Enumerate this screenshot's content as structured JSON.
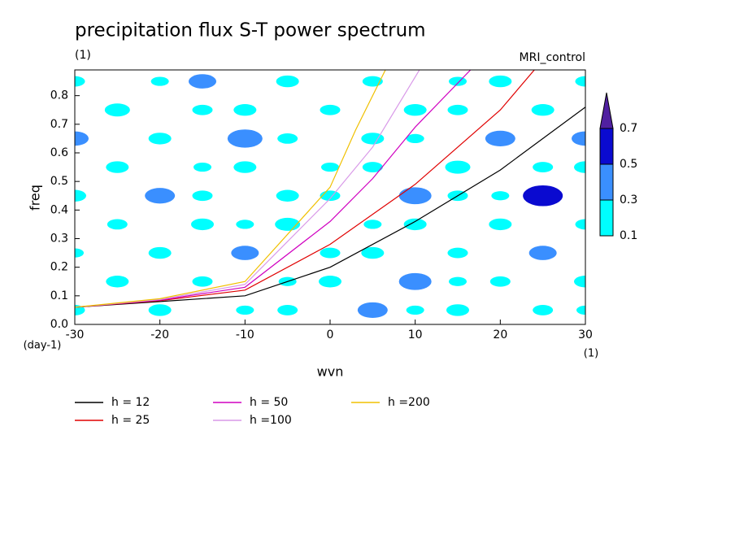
{
  "chart_data": {
    "type": "contour",
    "title": "precipitation flux S-T power spectrum",
    "subtitle": "(1)",
    "annotation": "MRI_control",
    "x_label": "wvn",
    "y_label": "freq",
    "y_unit": "(day-1)",
    "x_unit": "(1)",
    "xlim": [
      -30,
      30
    ],
    "ylim": [
      0,
      0.89
    ],
    "xticks": [
      -30,
      -20,
      -10,
      0,
      10,
      20,
      30
    ],
    "yticks": [
      {
        "value": 0,
        "label": "0.0"
      },
      0.1,
      0.2,
      0.3,
      0.4,
      0.5,
      0.6,
      0.7,
      0.8
    ],
    "levels": [
      0.1,
      0.3,
      0.5,
      0.7
    ],
    "level_colors": [
      "#00ffff",
      "#3a8fff",
      "#0a0ad0",
      "#5020a0"
    ],
    "x_grid": [
      -30,
      -25,
      -20,
      -15,
      -10,
      -5,
      0,
      5,
      10,
      15,
      20,
      25,
      30
    ],
    "y_grid": [
      0.05,
      0.15,
      0.25,
      0.35,
      0.45,
      0.55,
      0.65,
      0.75,
      0.85
    ],
    "z": [
      [
        0.15,
        0.05,
        0.2,
        0.05,
        0.1,
        0.15,
        0.05,
        0.35,
        0.1,
        0.2,
        0.05,
        0.15,
        0.1
      ],
      [
        0.05,
        0.2,
        0.05,
        0.15,
        0.05,
        0.1,
        0.2,
        0.05,
        0.4,
        0.1,
        0.15,
        0.05,
        0.2
      ],
      [
        0.1,
        0.05,
        0.2,
        0.05,
        0.3,
        0.05,
        0.15,
        0.2,
        0.05,
        0.15,
        0.05,
        0.3,
        0.05
      ],
      [
        0.05,
        0.15,
        0.05,
        0.2,
        0.1,
        0.25,
        0.05,
        0.1,
        0.2,
        0.05,
        0.2,
        0.05,
        0.15
      ],
      [
        0.2,
        0.05,
        0.35,
        0.15,
        0.05,
        0.2,
        0.15,
        0.05,
        0.4,
        0.15,
        0.1,
        0.55,
        0.05
      ],
      [
        0.05,
        0.2,
        0.05,
        0.1,
        0.2,
        0.05,
        0.1,
        0.15,
        0.05,
        0.25,
        0.05,
        0.15,
        0.2
      ],
      [
        0.3,
        0.05,
        0.2,
        0.05,
        0.45,
        0.15,
        0.05,
        0.2,
        0.1,
        0.05,
        0.35,
        0.05,
        0.3
      ],
      [
        0.05,
        0.25,
        0.05,
        0.15,
        0.2,
        0.05,
        0.15,
        0.05,
        0.2,
        0.15,
        0.05,
        0.2,
        0.05
      ],
      [
        0.15,
        0.05,
        0.1,
        0.3,
        0.05,
        0.2,
        0.05,
        0.15,
        0.05,
        0.1,
        0.2,
        0.05,
        0.15
      ]
    ],
    "series": [
      {
        "name": "h = 12",
        "color": "#000000",
        "x": [
          -30,
          -20,
          -10,
          0,
          10,
          20,
          30
        ],
        "values": [
          0.06,
          0.08,
          0.1,
          0.2,
          0.36,
          0.54,
          0.76
        ]
      },
      {
        "name": "h = 25",
        "color": "#e00000",
        "x": [
          -30,
          -20,
          -10,
          0,
          10,
          20,
          24
        ],
        "values": [
          0.06,
          0.083,
          0.12,
          0.28,
          0.49,
          0.75,
          0.89
        ]
      },
      {
        "name": "h = 50",
        "color": "#d000c0",
        "x": [
          -30,
          -20,
          -10,
          0,
          5,
          10,
          16.5
        ],
        "values": [
          0.06,
          0.085,
          0.13,
          0.36,
          0.51,
          0.69,
          0.89
        ]
      },
      {
        "name": "h =100",
        "color": "#d898e8",
        "x": [
          -30,
          -20,
          -10,
          0,
          5,
          10.5
        ],
        "values": [
          0.06,
          0.087,
          0.14,
          0.44,
          0.62,
          0.89
        ]
      },
      {
        "name": "h =200",
        "color": "#f0c000",
        "x": [
          -30,
          -20,
          -10,
          0,
          3,
          6.5
        ],
        "values": [
          0.06,
          0.09,
          0.15,
          0.48,
          0.68,
          0.89
        ]
      }
    ]
  }
}
